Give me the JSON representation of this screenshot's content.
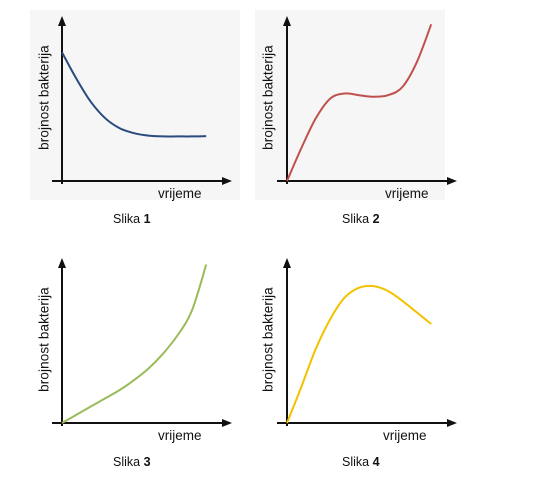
{
  "chart_data": [
    {
      "type": "line",
      "caption_prefix": "Slika",
      "caption_number": "1",
      "xlabel": "vrijeme",
      "ylabel": "brojnost bakterija",
      "color": "#2b4a7e",
      "x": [
        0,
        0.1,
        0.2,
        0.3,
        0.4,
        0.5,
        0.6,
        0.7,
        0.8,
        0.9,
        1.0
      ],
      "y": [
        0.78,
        0.62,
        0.48,
        0.38,
        0.32,
        0.29,
        0.275,
        0.27,
        0.27,
        0.27,
        0.272
      ],
      "xlim": [
        0,
        1.04
      ],
      "ylim": [
        0,
        1
      ]
    },
    {
      "type": "line",
      "caption_prefix": "Slika",
      "caption_number": "2",
      "xlabel": "vrijeme",
      "ylabel": "brojnost bakterija",
      "color": "#c0504d",
      "x": [
        0,
        0.1,
        0.2,
        0.3,
        0.4,
        0.5,
        0.6,
        0.7,
        0.8,
        0.9,
        1.0
      ],
      "y": [
        0.0,
        0.2,
        0.38,
        0.5,
        0.53,
        0.52,
        0.51,
        0.52,
        0.57,
        0.72,
        0.95
      ],
      "xlim": [
        0,
        1.04
      ],
      "ylim": [
        0,
        1
      ]
    },
    {
      "type": "line",
      "caption_prefix": "Slika",
      "caption_number": "3",
      "xlabel": "vrijeme",
      "ylabel": "brojnost bakterija",
      "color": "#9bbb59",
      "x": [
        0,
        0.1,
        0.2,
        0.3,
        0.4,
        0.5,
        0.6,
        0.7,
        0.8,
        0.9,
        1.0
      ],
      "y": [
        0.0,
        0.05,
        0.1,
        0.15,
        0.2,
        0.26,
        0.33,
        0.42,
        0.53,
        0.68,
        0.96
      ],
      "xlim": [
        0,
        1.04
      ],
      "ylim": [
        0,
        1
      ]
    },
    {
      "type": "line",
      "caption_prefix": "Slika",
      "caption_number": "4",
      "xlabel": "vrijeme",
      "ylabel": "brojnost bakterija",
      "color": "#f2c200",
      "x": [
        0,
        0.1,
        0.2,
        0.3,
        0.4,
        0.5,
        0.6,
        0.7,
        0.8,
        0.9,
        1.0
      ],
      "y": [
        0.0,
        0.22,
        0.45,
        0.63,
        0.76,
        0.82,
        0.83,
        0.8,
        0.74,
        0.67,
        0.6
      ],
      "xlim": [
        0,
        1.04
      ],
      "ylim": [
        0,
        1
      ]
    }
  ]
}
